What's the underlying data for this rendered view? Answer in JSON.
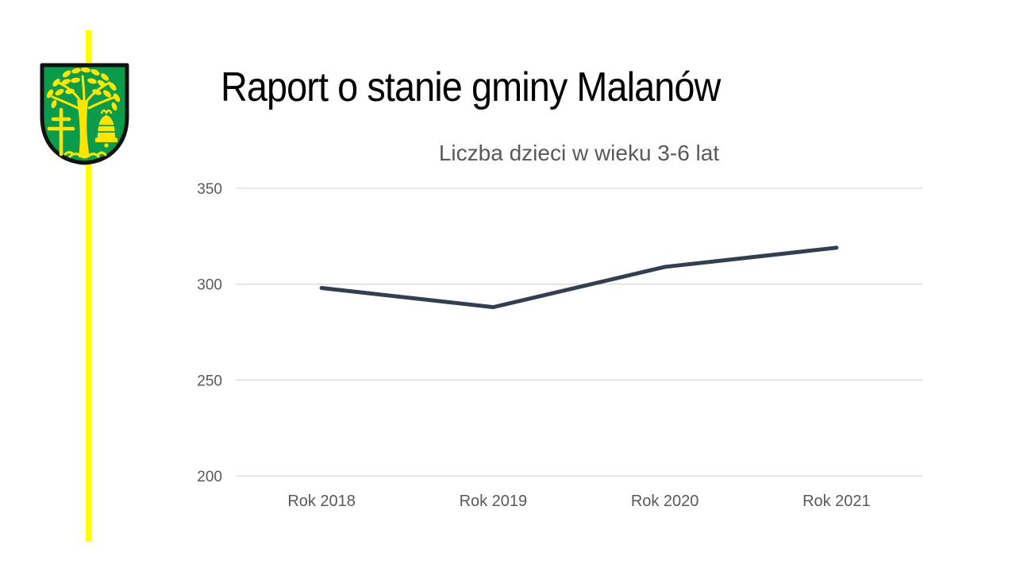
{
  "slide": {
    "title": "Raport o stanie gminy Malanów",
    "accent_line_color": "#ffff00",
    "crest": {
      "name": "herb gminy Malanów",
      "shield_color": "#0a9b4b",
      "charge_color": "#ffe500",
      "outline_color": "#111111"
    }
  },
  "chart_data": {
    "type": "line",
    "title": "Liczba dzieci w wieku 3-6 lat",
    "categories": [
      "Rok 2018",
      "Rok 2019",
      "Rok 2020",
      "Rok 2021"
    ],
    "values": [
      298,
      288,
      309,
      319
    ],
    "xlabel": "",
    "ylabel": "",
    "ylim": [
      200,
      350
    ],
    "yticks": [
      200,
      250,
      300,
      350
    ],
    "grid": true,
    "legend": false,
    "line_color": "#333F50",
    "gridline_color": "#d9d9d9",
    "label_color": "#595959",
    "title_color": "#595959"
  }
}
